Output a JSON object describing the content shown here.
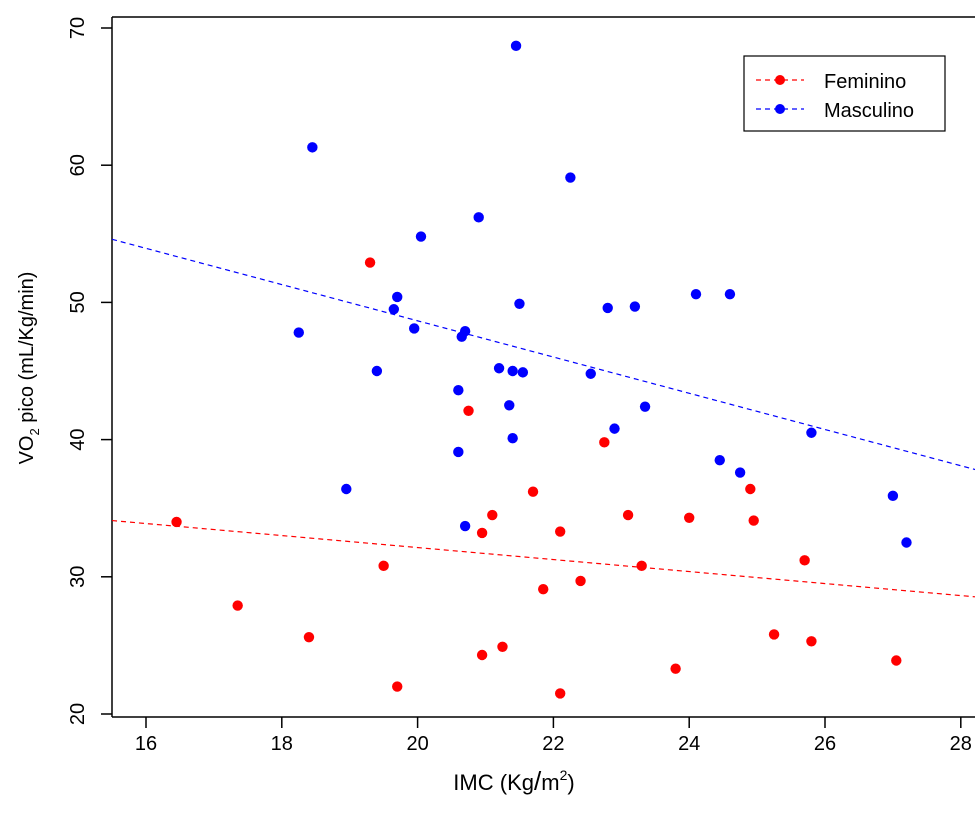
{
  "chart_data": {
    "type": "scatter",
    "xlabel": "IMC (Kg/m²)",
    "xlabel_parts": {
      "main": "IMC ",
      "open": "(",
      "units": "Kg",
      "slash": "/",
      "m": "m",
      "sup": "2",
      "close": ")"
    },
    "ylabel": "VO₂ pico (mL/Kg/min)",
    "ylabel_parts": {
      "pre": "VO",
      "sub": "2",
      "post": " pico (mL/Kg/min)"
    },
    "xlim": [
      15.5,
      28.3
    ],
    "ylim": [
      20,
      70
    ],
    "x_ticks": [
      16,
      18,
      20,
      22,
      24,
      26,
      28
    ],
    "y_ticks": [
      20,
      30,
      40,
      50,
      60,
      70
    ],
    "x_tick_labels": [
      "16",
      "18",
      "20",
      "22",
      "24",
      "26",
      "28"
    ],
    "y_tick_labels": [
      "20",
      "30",
      "40",
      "50",
      "60",
      "70"
    ],
    "grid": false,
    "legend": {
      "position": "top-right",
      "entries": [
        {
          "label": "Feminino",
          "color": "#ff0000"
        },
        {
          "label": "Masculino",
          "color": "#0000ff"
        }
      ]
    },
    "series": [
      {
        "name": "Feminino",
        "color": "#ff0000",
        "points": [
          [
            16.45,
            34.0
          ],
          [
            17.35,
            27.9
          ],
          [
            18.4,
            25.6
          ],
          [
            19.3,
            52.9
          ],
          [
            19.5,
            30.8
          ],
          [
            19.7,
            22.0
          ],
          [
            20.75,
            42.1
          ],
          [
            20.95,
            33.2
          ],
          [
            20.95,
            24.3
          ],
          [
            21.1,
            34.5
          ],
          [
            21.25,
            24.9
          ],
          [
            21.7,
            36.2
          ],
          [
            21.85,
            29.1
          ],
          [
            22.1,
            33.3
          ],
          [
            22.1,
            21.5
          ],
          [
            22.4,
            29.7
          ],
          [
            22.75,
            39.8
          ],
          [
            23.1,
            34.5
          ],
          [
            23.3,
            30.8
          ],
          [
            23.8,
            23.3
          ],
          [
            24.0,
            34.3
          ],
          [
            24.9,
            36.4
          ],
          [
            24.95,
            34.1
          ],
          [
            25.25,
            25.8
          ],
          [
            25.7,
            31.2
          ],
          [
            25.8,
            25.3
          ],
          [
            27.05,
            23.9
          ]
        ],
        "trend": [
          [
            15.5,
            34.1
          ],
          [
            28.3,
            28.5
          ]
        ]
      },
      {
        "name": "Masculino",
        "color": "#0000ff",
        "points": [
          [
            18.25,
            47.8
          ],
          [
            18.45,
            61.3
          ],
          [
            18.95,
            36.4
          ],
          [
            19.4,
            45.0
          ],
          [
            19.65,
            49.5
          ],
          [
            19.7,
            50.4
          ],
          [
            19.95,
            48.1
          ],
          [
            20.05,
            54.8
          ],
          [
            20.6,
            43.6
          ],
          [
            20.6,
            39.1
          ],
          [
            20.65,
            47.5
          ],
          [
            20.7,
            47.9
          ],
          [
            20.7,
            33.7
          ],
          [
            20.9,
            56.2
          ],
          [
            21.2,
            45.2
          ],
          [
            21.35,
            42.5
          ],
          [
            21.4,
            45.0
          ],
          [
            21.4,
            40.1
          ],
          [
            21.45,
            68.7
          ],
          [
            21.5,
            49.9
          ],
          [
            21.55,
            44.9
          ],
          [
            22.25,
            59.1
          ],
          [
            22.55,
            44.8
          ],
          [
            22.8,
            49.6
          ],
          [
            22.9,
            40.8
          ],
          [
            23.2,
            49.7
          ],
          [
            23.35,
            42.4
          ],
          [
            24.1,
            50.6
          ],
          [
            24.45,
            38.5
          ],
          [
            24.6,
            50.6
          ],
          [
            24.75,
            37.6
          ],
          [
            25.8,
            40.5
          ],
          [
            27.0,
            35.9
          ],
          [
            27.2,
            32.5
          ]
        ],
        "trend": [
          [
            15.5,
            54.6
          ],
          [
            28.3,
            37.7
          ]
        ]
      }
    ]
  }
}
